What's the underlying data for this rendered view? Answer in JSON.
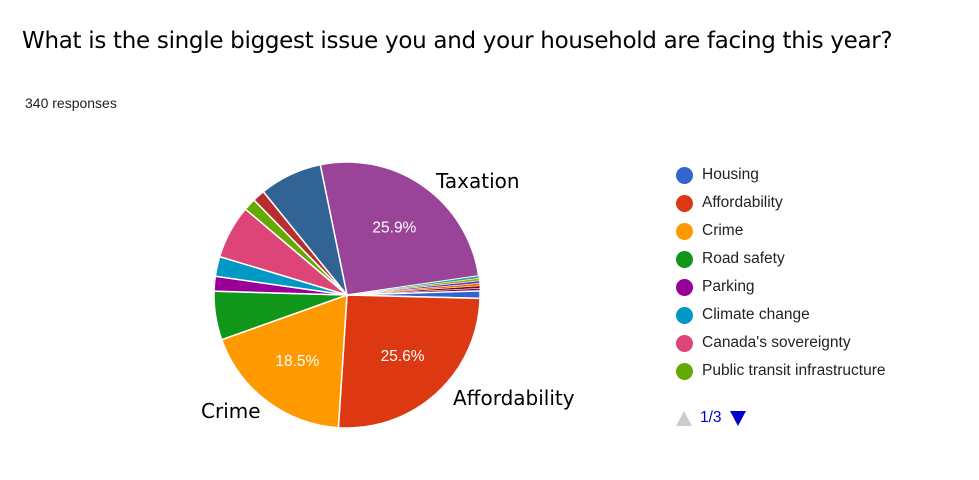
{
  "title": "What is the single biggest issue you and your household are facing this year?",
  "responses": "340 responses",
  "legend_page": "1/3",
  "chart_data": {
    "type": "pie",
    "start_angle_deg": -11.6,
    "slices": [
      {
        "label": "Taxation",
        "value": 25.9,
        "color": "#994499",
        "pct_label": "25.9%",
        "callout": "Taxation"
      },
      {
        "label": "",
        "value": 0.3,
        "color": "#22aa99"
      },
      {
        "label": "",
        "value": 0.3,
        "color": "#aaaa11"
      },
      {
        "label": "",
        "value": 0.3,
        "color": "#6633cc"
      },
      {
        "label": "",
        "value": 0.3,
        "color": "#e67300"
      },
      {
        "label": "",
        "value": 0.3,
        "color": "#8b0707"
      },
      {
        "label": "",
        "value": 0.3,
        "color": "#651067"
      },
      {
        "label": "Housing",
        "value": 0.9,
        "color": "#3366cc"
      },
      {
        "label": "Affordability",
        "value": 25.6,
        "color": "#dc3912",
        "pct_label": "25.6%",
        "callout": "Affordability"
      },
      {
        "label": "Crime",
        "value": 18.5,
        "color": "#ff9900",
        "pct_label": "18.5%",
        "callout": "Crime"
      },
      {
        "label": "Road safety",
        "value": 5.9,
        "color": "#109618"
      },
      {
        "label": "Parking",
        "value": 1.8,
        "color": "#990099"
      },
      {
        "label": "Climate change",
        "value": 2.4,
        "color": "#0099c6"
      },
      {
        "label": "Canada's sovereignty",
        "value": 6.5,
        "color": "#dd4477"
      },
      {
        "label": "Public transit infrastructure",
        "value": 1.5,
        "color": "#66aa00"
      },
      {
        "label": "",
        "value": 1.5,
        "color": "#b82e2e"
      },
      {
        "label": "",
        "value": 7.6,
        "color": "#316395"
      }
    ],
    "legend": [
      {
        "label": "Housing",
        "color": "#3366cc"
      },
      {
        "label": "Affordability",
        "color": "#dc3912"
      },
      {
        "label": "Crime",
        "color": "#ff9900"
      },
      {
        "label": "Road safety",
        "color": "#109618"
      },
      {
        "label": "Parking",
        "color": "#990099"
      },
      {
        "label": "Climate change",
        "color": "#0099c6"
      },
      {
        "label": "Canada's sovereignty",
        "color": "#dd4477"
      },
      {
        "label": "Public transit infrastructure",
        "color": "#66aa00"
      }
    ],
    "legend_placement": "right"
  }
}
